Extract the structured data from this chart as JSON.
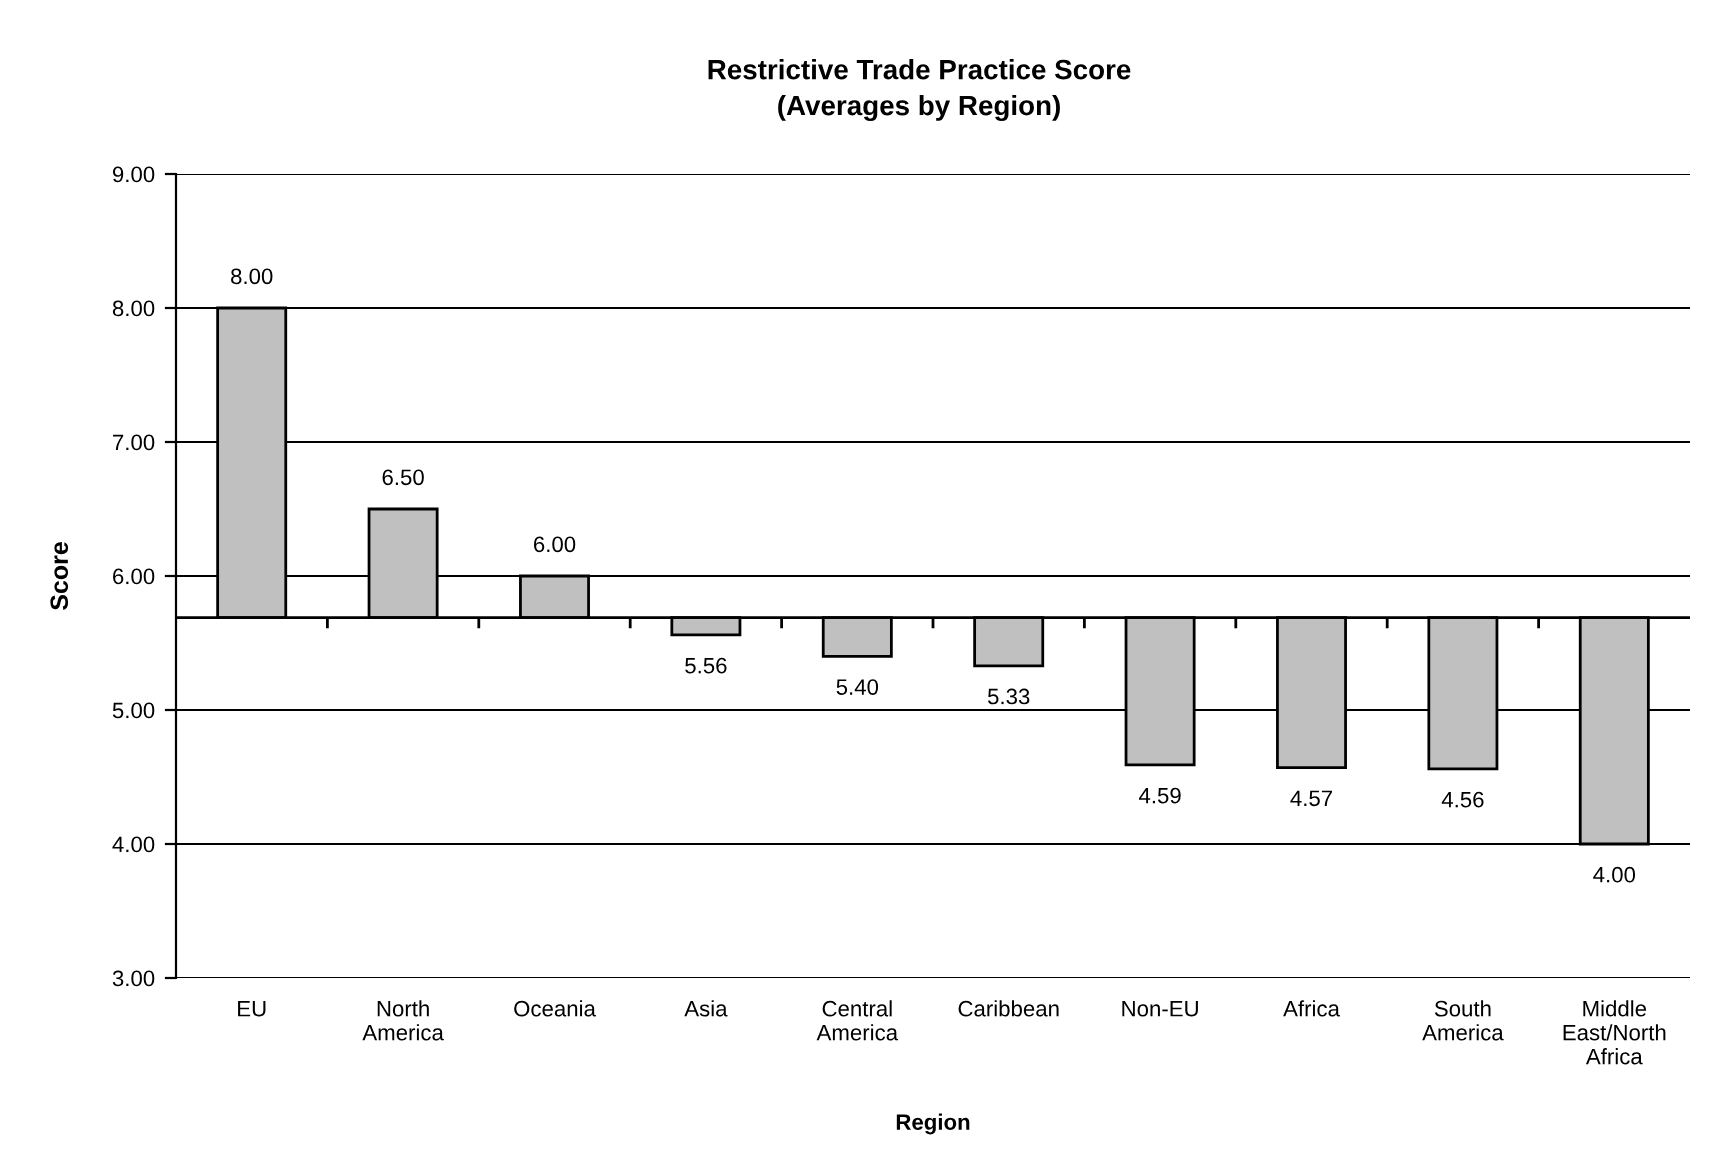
{
  "chart_data": {
    "type": "bar",
    "title": "Restrictive Trade Practice Score\n(Averages by Region)",
    "xlabel": "Region",
    "ylabel": "Score",
    "categories": [
      "EU",
      "North America",
      "Oceania",
      "Asia",
      "Central America",
      "Caribbean",
      "Non-EU",
      "Africa",
      "South America",
      "Middle East/North Africa"
    ],
    "base": [
      5.69,
      5.69,
      5.69,
      5.69,
      5.69,
      5.69,
      5.69,
      5.69,
      5.69,
      5.69
    ],
    "values": [
      2.31,
      0.81,
      0.31,
      -0.13,
      -0.29,
      -0.36,
      -1.1,
      -1.12,
      -1.13,
      -1.69
    ],
    "value_labels": [
      "8.00",
      "6.50",
      "6.00",
      "5.56",
      "5.40",
      "5.33",
      "4.59",
      "4.57",
      "4.56",
      "4.00"
    ],
    "color": "#c0c0c0",
    "ylim": [
      3,
      9
    ],
    "yticks": [
      {
        "value": 3,
        "label": "3.00"
      },
      {
        "value": 4,
        "label": "4.00"
      },
      {
        "value": 5,
        "label": "5.00"
      },
      {
        "value": 6,
        "label": "6.00"
      },
      {
        "value": 7,
        "label": "7.00"
      },
      {
        "value": 8,
        "label": "8.00"
      },
      {
        "value": 9,
        "label": "9.00"
      }
    ],
    "ref_lines": [
      {
        "axis": "y",
        "value": 5.69,
        "color": "#000000"
      }
    ],
    "grid": "y"
  }
}
